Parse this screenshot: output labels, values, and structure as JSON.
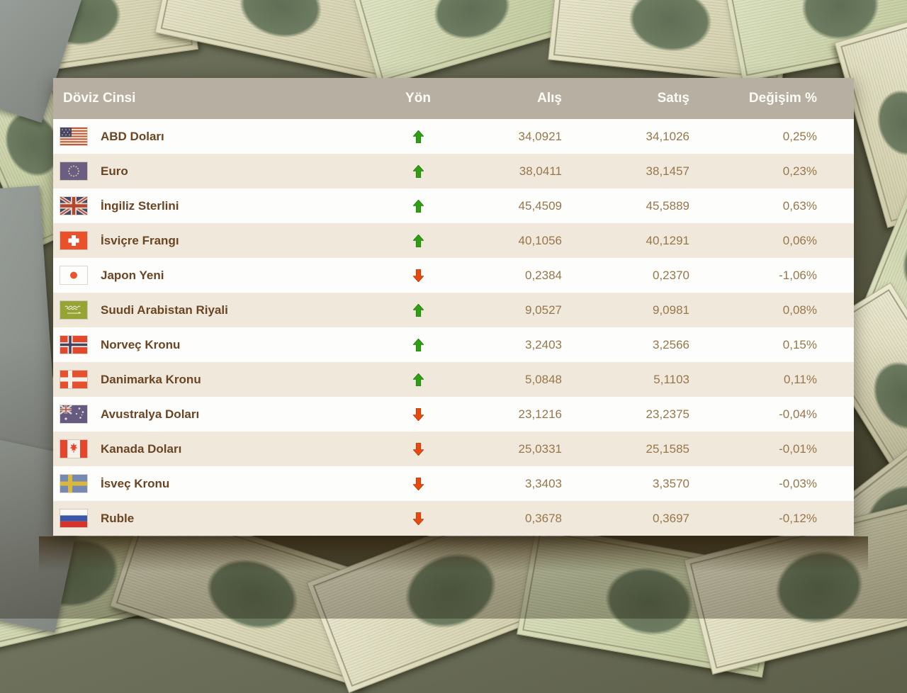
{
  "table": {
    "columns": {
      "currency": "Döviz Cinsi",
      "direction": "Yön",
      "buy": "Alış",
      "sell": "Satış",
      "change": "Değişim %"
    }
  },
  "rows": [
    {
      "flag": "us",
      "flag_name": "usa-flag-icon",
      "name": "ABD Doları",
      "direction": "up",
      "buy": "34,0921",
      "sell": "34,1026",
      "change": "0,25%"
    },
    {
      "flag": "eu",
      "flag_name": "eu-flag-icon",
      "name": "Euro",
      "direction": "up",
      "buy": "38,0411",
      "sell": "38,1457",
      "change": "0,23%"
    },
    {
      "flag": "uk",
      "flag_name": "uk-flag-icon",
      "name": "İngiliz Sterlini",
      "direction": "up",
      "buy": "45,4509",
      "sell": "45,5889",
      "change": "0,63%"
    },
    {
      "flag": "ch",
      "flag_name": "switzerland-flag-icon",
      "name": "İsviçre Frangı",
      "direction": "up",
      "buy": "40,1056",
      "sell": "40,1291",
      "change": "0,06%"
    },
    {
      "flag": "jp",
      "flag_name": "japan-flag-icon",
      "name": "Japon Yeni",
      "direction": "down",
      "buy": "0,2384",
      "sell": "0,2370",
      "change": "-1,06%"
    },
    {
      "flag": "sa",
      "flag_name": "saudi-arabia-flag-icon",
      "name": "Suudi Arabistan Riyali",
      "direction": "up",
      "buy": "9,0527",
      "sell": "9,0981",
      "change": "0,08%"
    },
    {
      "flag": "no",
      "flag_name": "norway-flag-icon",
      "name": "Norveç Kronu",
      "direction": "up",
      "buy": "3,2403",
      "sell": "3,2566",
      "change": "0,15%"
    },
    {
      "flag": "dk",
      "flag_name": "denmark-flag-icon",
      "name": "Danimarka Kronu",
      "direction": "up",
      "buy": "5,0848",
      "sell": "5,1103",
      "change": "0,11%"
    },
    {
      "flag": "au",
      "flag_name": "australia-flag-icon",
      "name": "Avustralya Doları",
      "direction": "down",
      "buy": "23,1216",
      "sell": "23,2375",
      "change": "-0,04%"
    },
    {
      "flag": "ca",
      "flag_name": "canada-flag-icon",
      "name": "Kanada Doları",
      "direction": "down",
      "buy": "25,0331",
      "sell": "25,1585",
      "change": "-0,01%"
    },
    {
      "flag": "se",
      "flag_name": "sweden-flag-icon",
      "name": "İsveç Kronu",
      "direction": "down",
      "buy": "3,3403",
      "sell": "3,3570",
      "change": "-0,03%"
    },
    {
      "flag": "ru",
      "flag_name": "russia-flag-icon",
      "name": "Ruble",
      "direction": "down",
      "buy": "0,3678",
      "sell": "0,3697",
      "change": "-0,12%"
    }
  ],
  "colors": {
    "header_bg": "#b7b0a2",
    "header_text": "#fcfbf6",
    "row_white": "#fdfdfb",
    "row_beige": "#f0e9db",
    "name_text": "#6b4523",
    "value_text": "#97764a",
    "up_arrow": "#2f9e12",
    "down_arrow": "#e8490e"
  }
}
